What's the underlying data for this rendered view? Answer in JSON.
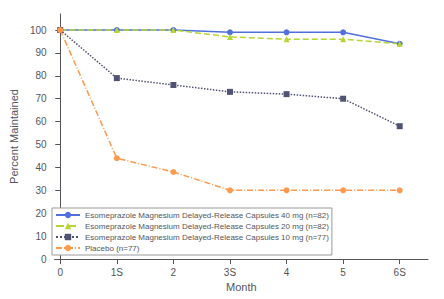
{
  "chart_data": {
    "type": "line",
    "xlabel": "Month",
    "ylabel": "Percent Maintained",
    "xlim": [
      -0.1,
      6.5
    ],
    "ylim": [
      0,
      107
    ],
    "xticks": [
      0,
      {
        "value": 1,
        "label": "1S"
      },
      2,
      {
        "value": 3,
        "label": "3S"
      },
      4,
      5,
      {
        "value": 6,
        "label": "6S"
      }
    ],
    "yticks": [
      0,
      10,
      20,
      30,
      40,
      50,
      60,
      70,
      80,
      90,
      100
    ],
    "x": [
      0,
      1,
      2,
      3,
      4,
      5,
      6
    ],
    "series": [
      {
        "name": "Esomeprazole Magnesium Delayed-Release Capsules 40 mg (n=82)",
        "values": [
          100,
          100,
          100,
          99,
          99,
          99,
          94
        ],
        "marker": "circle",
        "line_style": "solid"
      },
      {
        "name": "Esomeprazole Magnesium Delayed-Release Capsules 20 mg (n=82)",
        "values": [
          100,
          100,
          100,
          97,
          96,
          96,
          94
        ],
        "marker": "triangle",
        "line_style": "dashed"
      },
      {
        "name": "Esomeprazole Magnesium Delayed-Release Capsules 10 mg (n=77)",
        "values": [
          100,
          79,
          76,
          73,
          72,
          70,
          58
        ],
        "marker": "square",
        "line_style": "dotted"
      },
      {
        "name": "Placebo (n=77)",
        "values": [
          100,
          44,
          38,
          30,
          30,
          30,
          30
        ],
        "marker": "circle",
        "line_style": "dashdot"
      }
    ],
    "grid": false,
    "legend": "lower left"
  }
}
